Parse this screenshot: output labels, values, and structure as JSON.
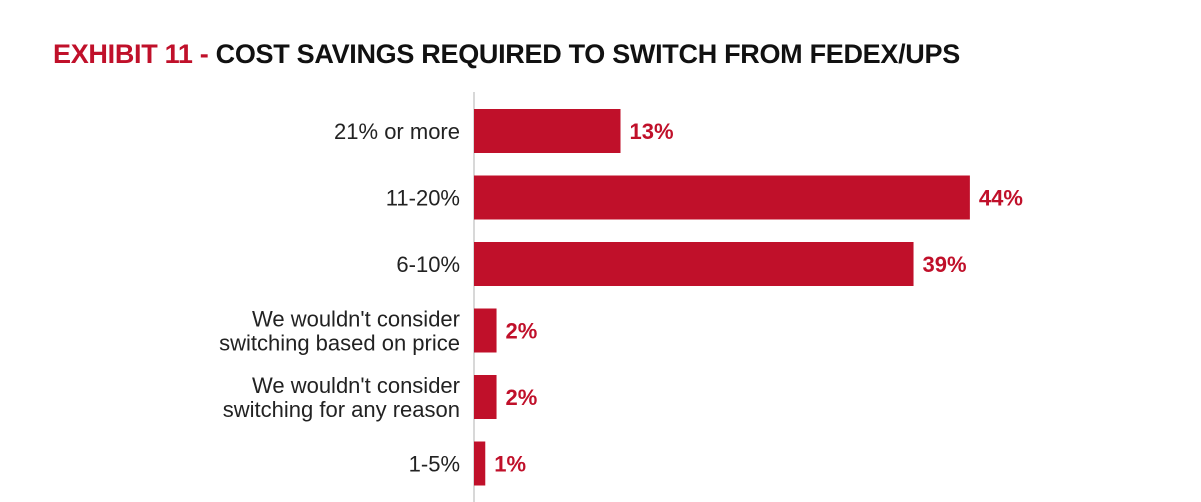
{
  "title": {
    "prefix": "EXHIBIT 11 -",
    "main": "COST SAVINGS REQUIRED TO SWITCH FROM FEDEX/UPS"
  },
  "colors": {
    "bar": "#c0102a",
    "value_label": "#c0102a",
    "title_prefix": "#c0102a",
    "axis": "#cccccc"
  },
  "chart_data": {
    "type": "bar",
    "orientation": "horizontal",
    "title": "EXHIBIT 11 - COST SAVINGS REQUIRED TO SWITCH FROM FEDEX/UPS",
    "categories": [
      [
        "21% or more"
      ],
      [
        "11-20%"
      ],
      [
        "6-10%"
      ],
      [
        "We wouldn't consider",
        "switching based on price"
      ],
      [
        "We wouldn't consider",
        "switching for any reason"
      ],
      [
        "1-5%"
      ]
    ],
    "values": [
      13,
      44,
      39,
      2,
      2,
      1
    ],
    "value_labels": [
      "13%",
      "44%",
      "39%",
      "2%",
      "2%",
      "1%"
    ],
    "xlim": [
      0,
      50
    ],
    "xlabel": "",
    "ylabel": "",
    "grid": false,
    "legend": "none"
  }
}
